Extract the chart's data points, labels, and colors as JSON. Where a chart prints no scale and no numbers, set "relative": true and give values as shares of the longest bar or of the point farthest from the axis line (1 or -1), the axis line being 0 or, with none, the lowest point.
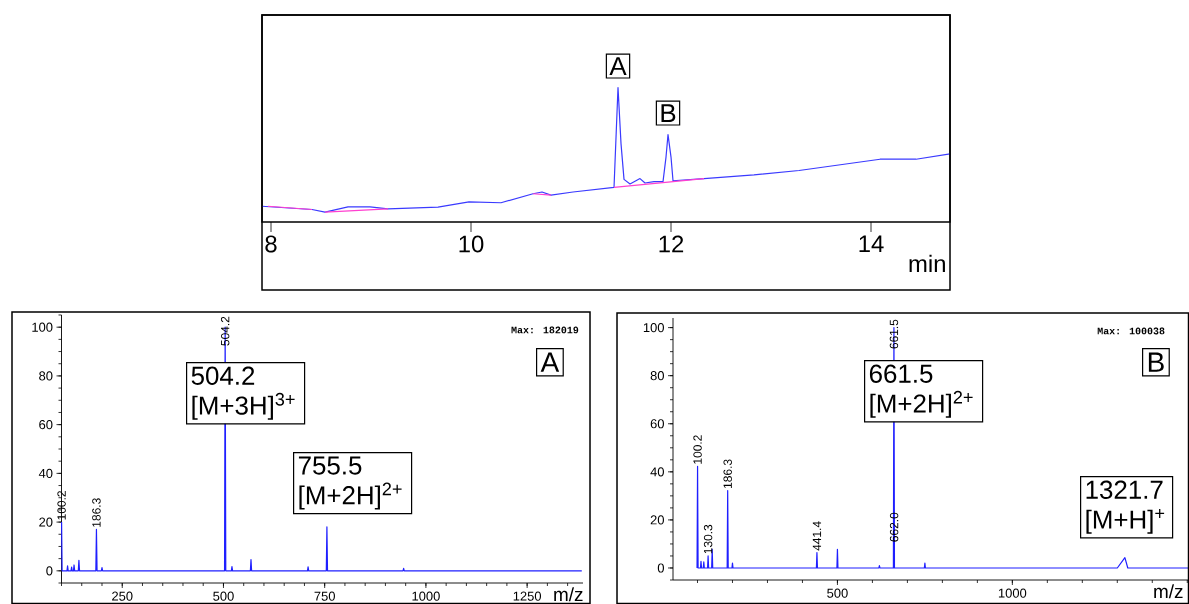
{
  "chart_data": [
    {
      "type": "line",
      "relative": true,
      "xlabel": "min",
      "xlim": [
        7.91,
        14.79
      ],
      "xticks": [
        8,
        10,
        12,
        14
      ],
      "series": [
        {
          "color": "#3a3aff",
          "x": [
            7.91,
            8.41,
            8.54,
            8.77,
            8.99,
            9.17,
            9.67,
            9.98,
            10.3,
            10.62,
            10.71,
            10.8,
            11.02,
            11.43,
            11.47,
            11.5,
            11.53,
            11.59,
            11.69,
            11.74,
            11.83,
            11.92,
            11.95,
            11.97,
            12.0,
            12.02,
            12.33,
            12.83,
            13.28,
            14.09,
            14.45,
            14.79
          ],
          "values": [
            0.117,
            0.093,
            0.073,
            0.113,
            0.113,
            0.097,
            0.11,
            0.15,
            0.143,
            0.21,
            0.223,
            0.2,
            0.223,
            0.257,
            1.0,
            0.583,
            0.317,
            0.283,
            0.323,
            0.29,
            0.3,
            0.3,
            0.483,
            0.65,
            0.483,
            0.307,
            0.323,
            0.35,
            0.383,
            0.467,
            0.467,
            0.507
          ]
        },
        {
          "color": "#ff40d0",
          "x": [
            7.97,
            8.41,
            8.47,
            8.54,
            9.17,
            9.9,
            10.62,
            10.8,
            11.1,
            11.43,
            12.33
          ],
          "values": [
            0.117,
            0.093,
            null,
            0.073,
            0.097,
            null,
            0.21,
            0.2,
            null,
            0.257,
            0.323
          ]
        }
      ],
      "annotations": [
        {
          "text": "A",
          "x": 11.47,
          "y": 1.0
        },
        {
          "text": "B",
          "x": 11.97,
          "y": 0.65
        }
      ]
    },
    {
      "type": "line",
      "xlabel": "m/z",
      "xlim": [
        100,
        1388
      ],
      "ylim": [
        -5,
        105
      ],
      "xticks": [
        250,
        500,
        750,
        1000,
        1250
      ],
      "yticks": [
        0,
        20,
        40,
        60,
        80,
        100
      ],
      "series": [
        {
          "color": "#1f1fff",
          "x": [
            100.2,
            101.5,
            113.5,
            115,
            116.5,
            123.5,
            125,
            126.5,
            129.5,
            131,
            132.5,
            141.5,
            143,
            144.5,
            184.8,
            186.3,
            187.8,
            198.5,
            200,
            201.5,
            502.7,
            504.2,
            505.7,
            519.5,
            521,
            522.5,
            566.5,
            568,
            569.5,
            707.5,
            709,
            710.5,
            754,
            755.5,
            757,
            943.5,
            945,
            946.5,
            1385
          ],
          "values": [
            20,
            0,
            0,
            2,
            0,
            0,
            1.5,
            0,
            0,
            2.4,
            0,
            0,
            4.3,
            0,
            0,
            17,
            0,
            0,
            1.3,
            0,
            0,
            100,
            0,
            0,
            1.7,
            0,
            0,
            4.6,
            0,
            0,
            1.6,
            0,
            0,
            18,
            0,
            0,
            1,
            0,
            0
          ]
        }
      ],
      "annotations": [
        {
          "text": "100.2",
          "x": 100.2,
          "y": 20
        },
        {
          "text": "186.3",
          "x": 186.3,
          "y": 17
        },
        {
          "text": "504.2",
          "x": 504.2,
          "y": 100
        },
        "Max: 182019",
        "A",
        "504.2 [M+3H]$^{3+}$",
        "755.5 [M+2H]$^{2+}$"
      ]
    },
    {
      "type": "line",
      "xlabel": "m/z",
      "xlim": [
        30,
        1505
      ],
      "ylim": [
        -5,
        104
      ],
      "xticks": [
        500,
        1000
      ],
      "yticks": [
        0,
        20,
        40,
        60,
        80,
        100
      ],
      "series": [
        {
          "color": "#1f1fff",
          "x": [
            98.7,
            100.2,
            101.7,
            108.5,
            110,
            111.5,
            116.5,
            118,
            119.5,
            128.8,
            130.3,
            131.8,
            140.5,
            142,
            143.5,
            184.8,
            186.3,
            187.8,
            198.5,
            200,
            201.5,
            439.9,
            441.4,
            442.9,
            498.5,
            500,
            501.5,
            618.5,
            620,
            621.5,
            660,
            661.5,
            663,
            748.5,
            750,
            751.5,
            1300,
            1321.7,
            1330,
            1505
          ],
          "values": [
            0,
            42.3,
            0,
            0,
            2.8,
            0,
            0,
            2.5,
            0,
            0,
            5,
            0,
            0,
            7.8,
            0,
            0,
            32.2,
            0,
            0,
            2,
            0,
            0,
            6.4,
            0,
            0,
            7.8,
            0,
            0,
            1,
            0,
            0,
            100,
            0,
            0,
            2,
            0,
            0,
            4.3,
            0,
            0
          ]
        }
      ],
      "annotations": [
        {
          "text": "100.2",
          "x": 100.2,
          "y": 42.3
        },
        {
          "text": "130.3",
          "x": 130.3,
          "y": 5
        },
        {
          "text": "186.3",
          "x": 186.3,
          "y": 32.2
        },
        {
          "text": "441.4",
          "x": 441.4,
          "y": 6.4
        },
        {
          "text": "661.5",
          "x": 661.5,
          "y": 100
        },
        {
          "text": "662.0",
          "x": 662.0,
          "y": 10
        },
        "Max: 100038",
        "B",
        "661.5 [M+2H]$^{2+}$",
        "1321.7 [M+H]$^{+}$"
      ]
    }
  ]
}
